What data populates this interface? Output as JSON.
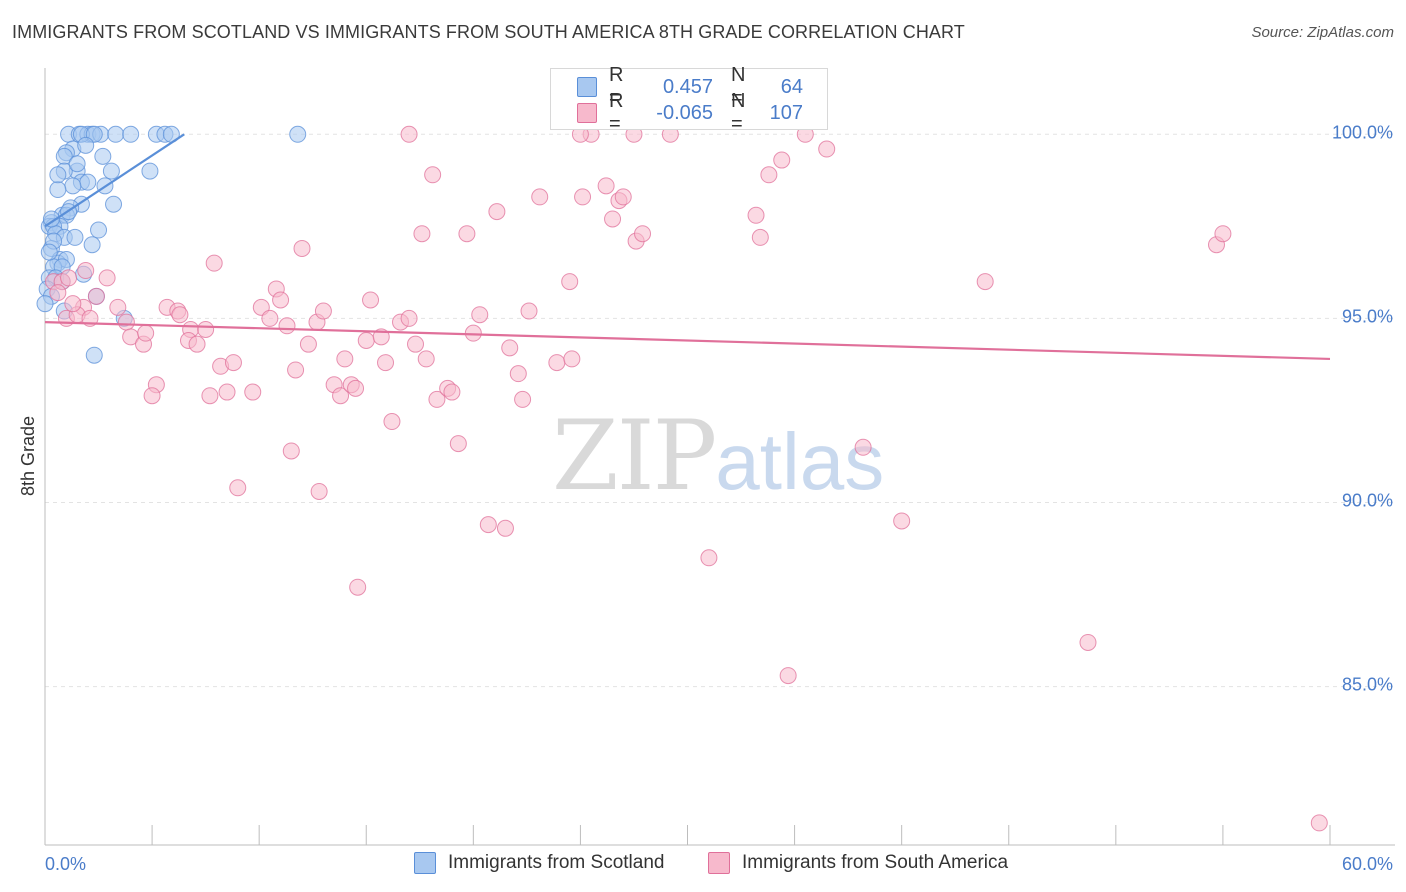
{
  "header": {
    "title": "IMMIGRANTS FROM SCOTLAND VS IMMIGRANTS FROM SOUTH AMERICA 8TH GRADE CORRELATION CHART",
    "source": "Source: ZipAtlas.com"
  },
  "watermark": {
    "zip": "ZIP",
    "atlas": "atlas"
  },
  "legend": {
    "rows": [
      {
        "r_label": "R =",
        "r_value": "0.457",
        "n_label": "N =",
        "n_value": "64",
        "color": "#a8c8f0"
      },
      {
        "r_label": "R =",
        "r_value": "-0.065",
        "n_label": "N =",
        "n_value": "107",
        "color": "#f7b9cc"
      }
    ]
  },
  "bottom_legend": [
    {
      "label": "Immigrants from Scotland",
      "color": "#a8c8f0"
    },
    {
      "label": "Immigrants from South America",
      "color": "#f7b9cc"
    }
  ],
  "chart_data": {
    "type": "scatter",
    "title": "IMMIGRANTS FROM SCOTLAND VS IMMIGRANTS FROM SOUTH AMERICA 8TH GRADE CORRELATION CHART",
    "xlabel": "",
    "ylabel": "8th Grade",
    "xlim": [
      0,
      60
    ],
    "ylim": [
      80.7,
      101.8
    ],
    "x_tick_labels": [
      "0.0%",
      "60.0%"
    ],
    "y_ticks": [
      85,
      90,
      95,
      100
    ],
    "y_tick_labels": [
      "85.0%",
      "90.0%",
      "95.0%",
      "100.0%"
    ],
    "grid": true,
    "legend_position": "top-center",
    "series": [
      {
        "name": "Immigrants from Scotland",
        "color": "#5a8fd8",
        "fill": "#a8c8f0",
        "trend": {
          "x": [
            0.0,
            6.5
          ],
          "y": [
            97.5,
            100.0
          ]
        },
        "points": [
          [
            1.1,
            100.0
          ],
          [
            1.6,
            100.0
          ],
          [
            2.0,
            100.0
          ],
          [
            2.2,
            100.0
          ],
          [
            2.6,
            100.0
          ],
          [
            3.3,
            100.0
          ],
          [
            4.0,
            100.0
          ],
          [
            5.2,
            100.0
          ],
          [
            5.6,
            100.0
          ],
          [
            5.9,
            100.0
          ],
          [
            1.7,
            100.0
          ],
          [
            2.3,
            100.0
          ],
          [
            11.8,
            100.0
          ],
          [
            1.3,
            99.6
          ],
          [
            1.9,
            99.7
          ],
          [
            1.0,
            99.5
          ],
          [
            2.7,
            99.4
          ],
          [
            0.9,
            99.4
          ],
          [
            1.5,
            99.0
          ],
          [
            3.1,
            99.0
          ],
          [
            0.9,
            99.0
          ],
          [
            4.9,
            99.0
          ],
          [
            1.7,
            98.7
          ],
          [
            2.0,
            98.7
          ],
          [
            2.8,
            98.6
          ],
          [
            1.3,
            98.6
          ],
          [
            0.6,
            98.5
          ],
          [
            1.7,
            98.1
          ],
          [
            3.2,
            98.1
          ],
          [
            1.2,
            98.0
          ],
          [
            0.8,
            97.8
          ],
          [
            1.0,
            97.8
          ],
          [
            0.3,
            97.6
          ],
          [
            0.2,
            97.5
          ],
          [
            0.7,
            97.5
          ],
          [
            0.4,
            97.5
          ],
          [
            0.5,
            97.3
          ],
          [
            2.5,
            97.4
          ],
          [
            0.9,
            97.2
          ],
          [
            1.4,
            97.2
          ],
          [
            2.2,
            97.0
          ],
          [
            0.3,
            96.9
          ],
          [
            0.7,
            96.6
          ],
          [
            0.6,
            96.5
          ],
          [
            1.0,
            96.6
          ],
          [
            0.4,
            96.4
          ],
          [
            0.8,
            96.4
          ],
          [
            1.8,
            96.2
          ],
          [
            0.2,
            96.1
          ],
          [
            0.5,
            96.1
          ],
          [
            0.1,
            95.8
          ],
          [
            0.3,
            95.6
          ],
          [
            0.0,
            95.4
          ],
          [
            2.4,
            95.6
          ],
          [
            3.7,
            95.0
          ],
          [
            2.3,
            94.0
          ],
          [
            0.6,
            98.9
          ],
          [
            1.1,
            97.9
          ],
          [
            0.4,
            97.1
          ],
          [
            0.2,
            96.8
          ],
          [
            1.5,
            99.2
          ],
          [
            0.3,
            97.7
          ],
          [
            0.8,
            96.0
          ],
          [
            0.9,
            95.2
          ]
        ]
      },
      {
        "name": "Immigrants from South America",
        "color": "#e0709a",
        "fill": "#f7b9cc",
        "trend": {
          "x": [
            0.0,
            60.0
          ],
          "y": [
            94.9,
            93.9
          ]
        },
        "points": [
          [
            0.4,
            96.0
          ],
          [
            0.8,
            96.0
          ],
          [
            1.1,
            96.1
          ],
          [
            1.9,
            96.3
          ],
          [
            2.9,
            96.1
          ],
          [
            1.8,
            95.3
          ],
          [
            2.4,
            95.6
          ],
          [
            1.0,
            95.0
          ],
          [
            1.5,
            95.1
          ],
          [
            3.4,
            95.3
          ],
          [
            3.8,
            94.9
          ],
          [
            4.0,
            94.5
          ],
          [
            4.6,
            94.3
          ],
          [
            4.7,
            94.6
          ],
          [
            5.7,
            95.3
          ],
          [
            6.2,
            95.2
          ],
          [
            6.3,
            95.1
          ],
          [
            6.8,
            94.7
          ],
          [
            6.7,
            94.4
          ],
          [
            7.1,
            94.3
          ],
          [
            7.5,
            94.7
          ],
          [
            7.9,
            96.5
          ],
          [
            8.2,
            93.7
          ],
          [
            8.8,
            93.8
          ],
          [
            8.5,
            93.0
          ],
          [
            7.7,
            92.9
          ],
          [
            9.7,
            93.0
          ],
          [
            5.2,
            93.2
          ],
          [
            5.0,
            92.9
          ],
          [
            10.1,
            95.3
          ],
          [
            10.8,
            95.8
          ],
          [
            10.5,
            95.0
          ],
          [
            11.0,
            95.5
          ],
          [
            11.3,
            94.8
          ],
          [
            11.7,
            93.6
          ],
          [
            11.5,
            91.4
          ],
          [
            12.0,
            96.9
          ],
          [
            12.3,
            94.3
          ],
          [
            12.7,
            94.9
          ],
          [
            13.0,
            95.2
          ],
          [
            13.5,
            93.2
          ],
          [
            13.8,
            92.9
          ],
          [
            14.0,
            93.9
          ],
          [
            14.3,
            93.2
          ],
          [
            14.5,
            93.1
          ],
          [
            15.0,
            94.4
          ],
          [
            15.2,
            95.5
          ],
          [
            15.7,
            94.5
          ],
          [
            15.9,
            93.8
          ],
          [
            16.2,
            92.2
          ],
          [
            16.6,
            94.9
          ],
          [
            17.0,
            95.0
          ],
          [
            17.3,
            94.3
          ],
          [
            17.8,
            93.9
          ],
          [
            17.6,
            97.3
          ],
          [
            18.1,
            98.9
          ],
          [
            18.3,
            92.8
          ],
          [
            18.8,
            93.1
          ],
          [
            19.0,
            93.0
          ],
          [
            19.3,
            91.6
          ],
          [
            19.7,
            97.3
          ],
          [
            20.0,
            94.6
          ],
          [
            20.3,
            95.1
          ],
          [
            20.7,
            89.4
          ],
          [
            21.1,
            97.9
          ],
          [
            21.5,
            89.3
          ],
          [
            21.7,
            94.2
          ],
          [
            22.1,
            93.5
          ],
          [
            22.3,
            92.8
          ],
          [
            22.6,
            95.2
          ],
          [
            23.1,
            98.3
          ],
          [
            23.9,
            93.8
          ],
          [
            24.5,
            96.0
          ],
          [
            24.6,
            93.9
          ],
          [
            25.1,
            98.3
          ],
          [
            25.5,
            100.0
          ],
          [
            26.2,
            98.6
          ],
          [
            26.5,
            97.7
          ],
          [
            26.8,
            98.2
          ],
          [
            27.0,
            98.3
          ],
          [
            27.5,
            100.0
          ],
          [
            27.6,
            97.1
          ],
          [
            27.9,
            97.3
          ],
          [
            29.2,
            100.0
          ],
          [
            31.0,
            88.5
          ],
          [
            14.6,
            87.7
          ],
          [
            9.0,
            90.4
          ],
          [
            12.8,
            90.3
          ],
          [
            33.2,
            97.8
          ],
          [
            33.4,
            97.2
          ],
          [
            33.8,
            98.9
          ],
          [
            34.4,
            99.3
          ],
          [
            34.7,
            85.3
          ],
          [
            35.5,
            100.0
          ],
          [
            36.5,
            99.6
          ],
          [
            38.2,
            91.5
          ],
          [
            40.0,
            89.5
          ],
          [
            43.9,
            96.0
          ],
          [
            48.7,
            86.2
          ],
          [
            54.7,
            97.0
          ],
          [
            55.0,
            97.3
          ],
          [
            59.5,
            81.3
          ],
          [
            1.3,
            95.4
          ],
          [
            2.1,
            95.0
          ],
          [
            0.6,
            95.7
          ],
          [
            17.0,
            100.0
          ],
          [
            25.0,
            100.0
          ]
        ]
      }
    ]
  }
}
